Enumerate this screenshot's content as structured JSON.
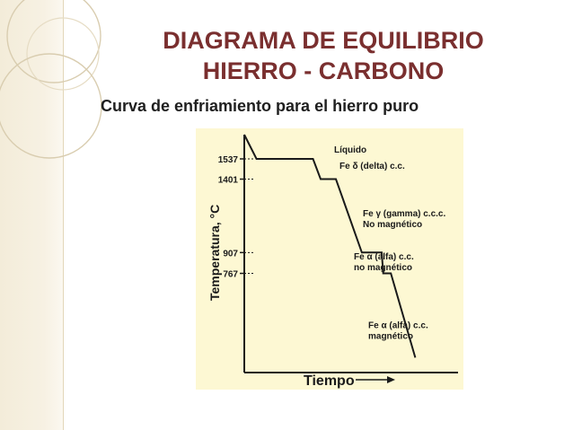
{
  "slide": {
    "title_line1": "DIAGRAMA DE EQUILIBRIO",
    "title_line2": "HIERRO - CARBONO",
    "subtitle": "Curva de enfriamiento para el hierro puro"
  },
  "colors": {
    "title": "#7a2f2f",
    "panel": "#fdf8d3",
    "band": "#f3ecd9"
  },
  "chart_data": {
    "type": "line",
    "xlabel": "Tiempo",
    "ylabel": "Temperatura, °C",
    "y_ticks": [
      1537,
      1401,
      907,
      767
    ],
    "series": [
      {
        "points": [
          [
            0,
            1700
          ],
          [
            0.8,
            1537
          ],
          [
            4.5,
            1537
          ],
          [
            5.0,
            1401
          ],
          [
            6.0,
            1401
          ],
          [
            7.7,
            907
          ],
          [
            9.0,
            907
          ],
          [
            9.1,
            767
          ],
          [
            9.6,
            767
          ],
          [
            11.2,
            200
          ]
        ]
      }
    ],
    "annotations": [
      {
        "lines": [
          "Líquido"
        ],
        "y": 1580
      },
      {
        "lines": [
          "Fe δ (delta) c.c."
        ],
        "y": 1470
      },
      {
        "lines": [
          "Fe γ (gamma) c.c.c.",
          "No magnético"
        ],
        "y": 1150
      },
      {
        "lines": [
          "Fe α (alfa) c.c.",
          "no magnético"
        ],
        "y": 860
      },
      {
        "lines": [
          "Fe α (alfa) c.c.",
          "magnético"
        ],
        "y": 400
      }
    ],
    "xlim": [
      0,
      14
    ],
    "ylim": [
      100,
      1700
    ],
    "grid": false
  }
}
